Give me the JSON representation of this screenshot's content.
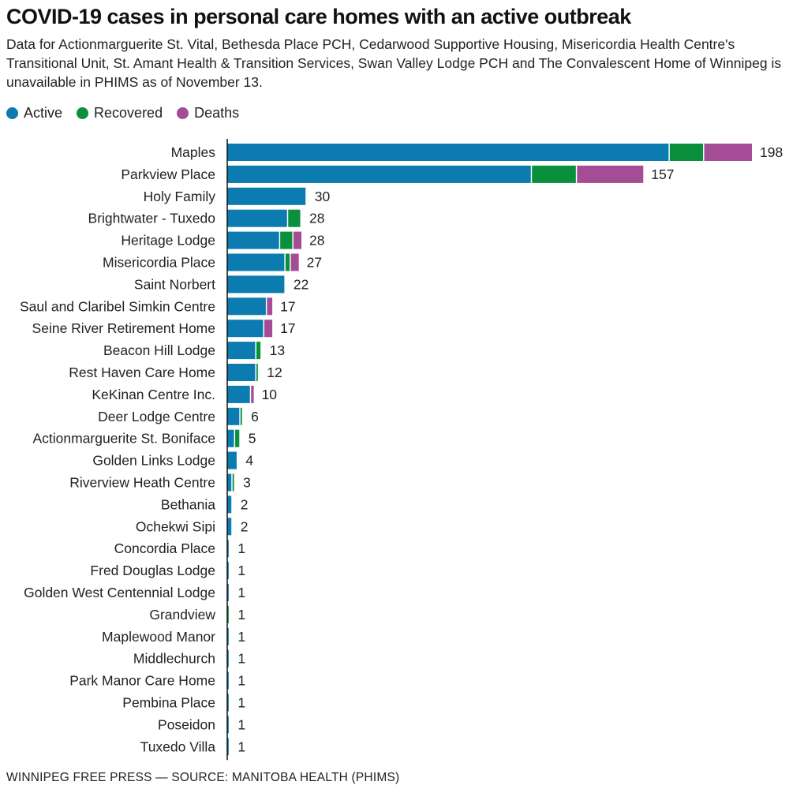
{
  "title": "COVID-19 cases in personal care homes with an active outbreak",
  "subtitle": "Data for Actionmarguerite St. Vital, Bethesda Place PCH, Cedarwood Supportive Housing, Misericordia Health Centre's Transitional Unit, St. Amant Health & Transition Services, Swan Valley Lodge PCH and The Convalescent Home of Winnipeg is unavailable in PHIMS as of November 13.",
  "legend": [
    {
      "label": "Active",
      "color": "#0b7bb0"
    },
    {
      "label": "Recovered",
      "color": "#0a8f3c"
    },
    {
      "label": "Deaths",
      "color": "#a44c95"
    }
  ],
  "footer": "WINNIPEG FREE PRESS — SOURCE: MANITOBA HEALTH (PHIMS)",
  "chart_data": {
    "type": "bar",
    "orientation": "horizontal",
    "stacked": true,
    "categories": [
      "Maples",
      "Parkview Place",
      "Holy Family",
      "Brightwater - Tuxedo",
      "Heritage Lodge",
      "Misericordia Place",
      "Saint Norbert",
      "Saul and Claribel Simkin Centre",
      "Seine River Retirement Home",
      "Beacon Hill Lodge",
      "Rest Haven Care Home",
      "KeKinan Centre Inc.",
      "Deer Lodge Centre",
      "Actionmarguerite St. Boniface",
      "Golden Links Lodge",
      "Riverview Heath Centre",
      "Bethania",
      "Ochekwi Sipi",
      "Concordia Place",
      "Fred Douglas Lodge",
      "Golden West Centennial Lodge",
      "Grandview",
      "Maplewood Manor",
      "Middlechurch",
      "Park Manor Care Home",
      "Pembina Place",
      "Poseidon",
      "Tuxedo Villa"
    ],
    "series": [
      {
        "name": "Active",
        "color": "#0b7bb0",
        "values": [
          167,
          115,
          30,
          23,
          20,
          22,
          22,
          15,
          14,
          11,
          11,
          9,
          5,
          3,
          4,
          2,
          2,
          2,
          1,
          1,
          1,
          0,
          1,
          1,
          1,
          1,
          1,
          1
        ]
      },
      {
        "name": "Recovered",
        "color": "#0a8f3c",
        "values": [
          13,
          17,
          0,
          5,
          5,
          2,
          0,
          0,
          0,
          2,
          1,
          0,
          1,
          2,
          0,
          1,
          0,
          0,
          0,
          0,
          0,
          1,
          0,
          0,
          0,
          0,
          0,
          0
        ]
      },
      {
        "name": "Deaths",
        "color": "#a44c95",
        "values": [
          18,
          25,
          0,
          0,
          3,
          3,
          0,
          2,
          3,
          0,
          0,
          1,
          0,
          0,
          0,
          0,
          0,
          0,
          0,
          0,
          0,
          0,
          0,
          0,
          0,
          0,
          0,
          0
        ]
      }
    ],
    "totals": [
      198,
      157,
      30,
      28,
      28,
      27,
      22,
      17,
      17,
      13,
      12,
      10,
      6,
      5,
      4,
      3,
      2,
      2,
      1,
      1,
      1,
      1,
      1,
      1,
      1,
      1,
      1,
      1
    ],
    "xlim": [
      0,
      200
    ],
    "grid": false,
    "legend_position": "top-left"
  }
}
